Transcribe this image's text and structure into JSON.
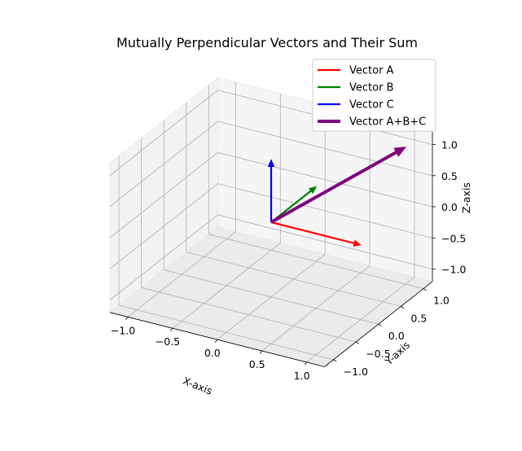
{
  "chart_data": {
    "type": "3d-quiver",
    "title": "Mutually Perpendicular Vectors and Their Sum",
    "xlabel": "X-axis",
    "ylabel": "Y-axis",
    "zlabel": "Z-axis",
    "xlim": [
      -1.2,
      1.2
    ],
    "ylim": [
      -1.2,
      1.2
    ],
    "zlim": [
      -1.2,
      1.2
    ],
    "xticks": [
      -1.0,
      -0.5,
      0.0,
      0.5,
      1.0
    ],
    "yticks": [
      -1.0,
      -0.5,
      0.0,
      0.5,
      1.0
    ],
    "zticks": [
      -1.0,
      -0.5,
      0.0,
      0.5,
      1.0
    ],
    "xtick_labels": [
      "−1.0",
      "−0.5",
      "0.0",
      "0.5",
      "1.0"
    ],
    "ytick_labels": [
      "−1.0",
      "−0.5",
      "0.0",
      "0.5",
      "1.0"
    ],
    "ztick_labels": [
      "−1.0",
      "−0.5",
      "0.0",
      "0.5",
      "1.0"
    ],
    "grid": true,
    "legend_position": "top-right",
    "series": [
      {
        "name": "Vector A",
        "color": "#ff0000",
        "origin": [
          0,
          0,
          0
        ],
        "vector": [
          1,
          0,
          0
        ]
      },
      {
        "name": "Vector B",
        "color": "#008000",
        "origin": [
          0,
          0,
          0
        ],
        "vector": [
          0,
          1,
          0
        ]
      },
      {
        "name": "Vector C",
        "color": "#0000ff",
        "origin": [
          0,
          0,
          0
        ],
        "vector": [
          0,
          0,
          1
        ]
      },
      {
        "name": "Vector A+B+C",
        "color": "#800080",
        "origin": [
          0,
          0,
          0
        ],
        "vector": [
          1,
          1,
          1
        ]
      }
    ]
  }
}
